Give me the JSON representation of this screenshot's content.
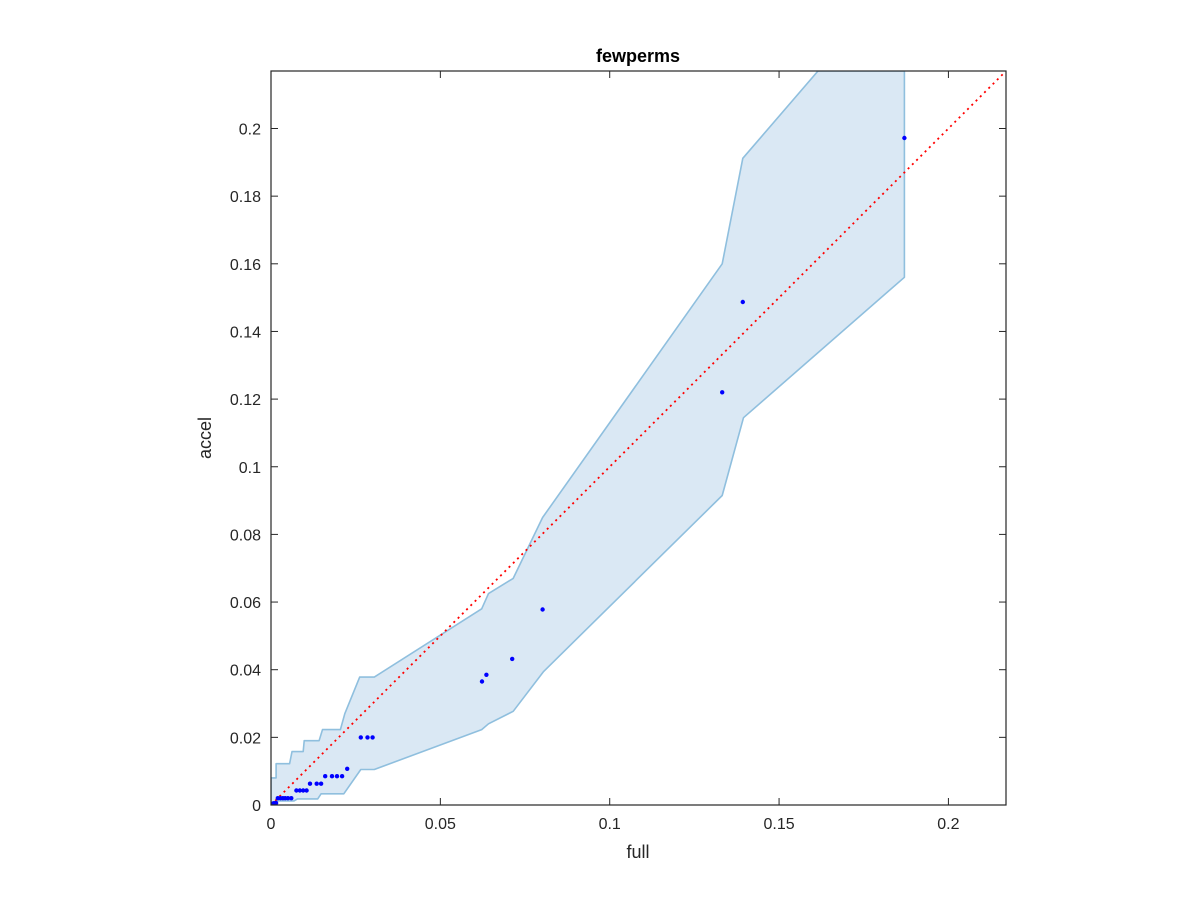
{
  "chart_data": {
    "type": "scatter",
    "title": "fewperms",
    "xlabel": "full",
    "ylabel": "accel",
    "xlim": [
      0,
      0.217
    ],
    "ylim": [
      0,
      0.217
    ],
    "xticks": [
      0,
      0.05,
      0.1,
      0.15,
      0.2
    ],
    "yticks": [
      0,
      0.02,
      0.04,
      0.06,
      0.08,
      0.1,
      0.12,
      0.14,
      0.16,
      0.18,
      0.2
    ],
    "grid": false,
    "colors": {
      "points": "#0000ff",
      "band_fill": "#dae8f4",
      "band_edge": "#8fbfde",
      "identity_line": "#ff0000",
      "axes": "#262626"
    },
    "points": [
      [
        0.0002,
        0.0002
      ],
      [
        0.0004,
        0.0003
      ],
      [
        0.0006,
        0.0004
      ],
      [
        0.0008,
        0.0005
      ],
      [
        0.001,
        0.0005
      ],
      [
        0.0015,
        0.0006
      ],
      [
        0.002,
        0.002
      ],
      [
        0.0028,
        0.002
      ],
      [
        0.0035,
        0.002
      ],
      [
        0.0042,
        0.002
      ],
      [
        0.005,
        0.002
      ],
      [
        0.006,
        0.002
      ],
      [
        0.0075,
        0.0043
      ],
      [
        0.0085,
        0.0043
      ],
      [
        0.0095,
        0.0043
      ],
      [
        0.0105,
        0.0043
      ],
      [
        0.0115,
        0.0063
      ],
      [
        0.0135,
        0.0063
      ],
      [
        0.0148,
        0.0063
      ],
      [
        0.016,
        0.0085
      ],
      [
        0.018,
        0.0085
      ],
      [
        0.0195,
        0.0085
      ],
      [
        0.021,
        0.0085
      ],
      [
        0.0225,
        0.0107
      ],
      [
        0.0265,
        0.02
      ],
      [
        0.0285,
        0.02
      ],
      [
        0.03,
        0.02
      ],
      [
        0.0623,
        0.0365
      ],
      [
        0.0636,
        0.0385
      ],
      [
        0.0712,
        0.0432
      ],
      [
        0.0802,
        0.0578
      ],
      [
        0.1332,
        0.122
      ],
      [
        0.1393,
        0.1487
      ],
      [
        0.187,
        0.1972
      ]
    ],
    "band_upper": [
      [
        0,
        0.008
      ],
      [
        0.0015,
        0.008
      ],
      [
        0.0015,
        0.0122
      ],
      [
        0.0055,
        0.0122
      ],
      [
        0.0062,
        0.0158
      ],
      [
        0.0095,
        0.0158
      ],
      [
        0.0098,
        0.019
      ],
      [
        0.0142,
        0.019
      ],
      [
        0.0152,
        0.0223
      ],
      [
        0.0205,
        0.0223
      ],
      [
        0.0218,
        0.027
      ],
      [
        0.0262,
        0.0378
      ],
      [
        0.0305,
        0.0378
      ],
      [
        0.0622,
        0.058
      ],
      [
        0.0642,
        0.0625
      ],
      [
        0.0715,
        0.067
      ],
      [
        0.0802,
        0.085
      ],
      [
        0.1332,
        0.16
      ],
      [
        0.1393,
        0.1912
      ],
      [
        0.1615,
        0.217
      ],
      [
        0.187,
        0.217
      ]
    ],
    "band_lower": [
      [
        0.187,
        0.156
      ],
      [
        0.1395,
        0.1145
      ],
      [
        0.1332,
        0.0915
      ],
      [
        0.0805,
        0.0395
      ],
      [
        0.0715,
        0.0277
      ],
      [
        0.0642,
        0.024
      ],
      [
        0.0622,
        0.0223
      ],
      [
        0.0305,
        0.0105
      ],
      [
        0.0265,
        0.0105
      ],
      [
        0.0215,
        0.0033
      ],
      [
        0.0148,
        0.0033
      ],
      [
        0.0138,
        0.0018
      ],
      [
        0.0078,
        0.0018
      ],
      [
        0.0068,
        0.0012
      ],
      [
        0.0015,
        0.0012
      ],
      [
        0.0005,
        0
      ],
      [
        0,
        0
      ]
    ],
    "identity_line": [
      [
        0,
        0
      ],
      [
        0.217,
        0.217
      ]
    ]
  }
}
